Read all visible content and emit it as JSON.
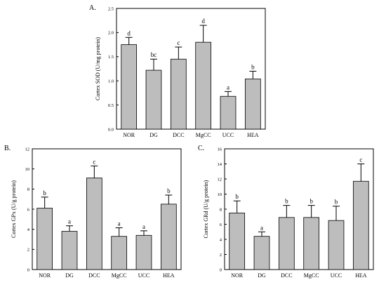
{
  "chart_data": [
    {
      "type": "bar",
      "panel_label": "A.",
      "ylabel": "Cortex SOD (U/mg protein)",
      "categories": [
        "NOR",
        "DG",
        "DCC",
        "MgCC",
        "UCC",
        "HEA"
      ],
      "values": [
        1.75,
        1.22,
        1.45,
        1.8,
        0.68,
        1.04
      ],
      "errors": [
        0.15,
        0.23,
        0.25,
        0.35,
        0.1,
        0.16
      ],
      "significance": [
        "d",
        "bc",
        "c",
        "d",
        "a",
        "b"
      ],
      "ylim": [
        0,
        2.5
      ],
      "yticks": [
        "0.0",
        "0.5",
        "1.0",
        "1.5",
        "2.0",
        "2.5"
      ],
      "grid": false
    },
    {
      "type": "bar",
      "panel_label": "B.",
      "ylabel": "Cortex GPx (U/g protein)",
      "categories": [
        "NOR",
        "DG",
        "DCC",
        "MgCC",
        "UCC",
        "HEA"
      ],
      "values": [
        6.1,
        3.8,
        9.1,
        3.3,
        3.4,
        6.5
      ],
      "errors": [
        1.1,
        0.55,
        1.2,
        0.85,
        0.45,
        0.9
      ],
      "significance": [
        "b",
        "a",
        "c",
        "a",
        "a",
        "b"
      ],
      "ylim": [
        0,
        12
      ],
      "yticks": [
        "0",
        "2",
        "4",
        "6",
        "8",
        "10",
        "12"
      ],
      "grid": false
    },
    {
      "type": "bar",
      "panel_label": "C.",
      "ylabel": "Cortex GRd (U/g protein)",
      "categories": [
        "NOR",
        "DG",
        "DCC",
        "MgCC",
        "UCC",
        "HEA"
      ],
      "values": [
        7.5,
        4.4,
        6.9,
        6.9,
        6.5,
        11.7
      ],
      "errors": [
        1.6,
        0.6,
        1.6,
        1.6,
        1.9,
        2.3
      ],
      "significance": [
        "b",
        "a",
        "b",
        "b",
        "b",
        "c"
      ],
      "ylim": [
        0,
        16
      ],
      "yticks": [
        "0",
        "2",
        "4",
        "6",
        "8",
        "10",
        "12",
        "14",
        "16"
      ],
      "grid": false
    }
  ]
}
